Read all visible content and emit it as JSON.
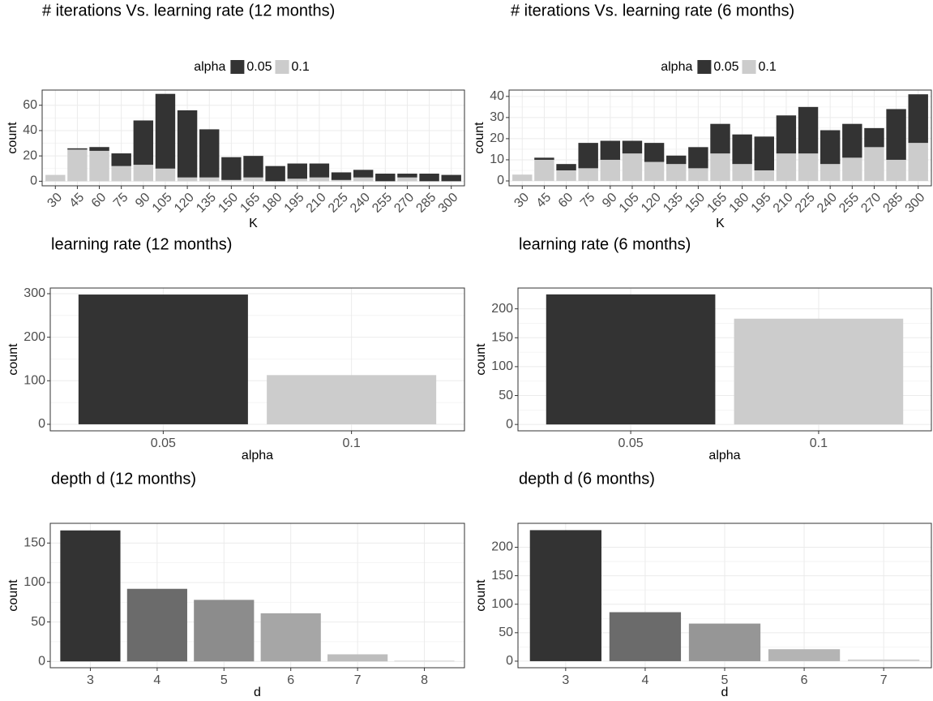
{
  "chart_data": [
    {
      "type": "stacked_bar",
      "title": "# iterations Vs. learning rate (12 months)",
      "xlabel": "K",
      "ylabel": "count",
      "legend_title": "alpha",
      "legend": "top",
      "grid": true,
      "categories": [
        "30",
        "45",
        "60",
        "75",
        "90",
        "105",
        "120",
        "135",
        "150",
        "165",
        "180",
        "195",
        "210",
        "225",
        "240",
        "255",
        "270",
        "285",
        "300"
      ],
      "series": [
        {
          "name": "0.05",
          "color": "#333333",
          "values": [
            0,
            1,
            3,
            10,
            35,
            59,
            53,
            38,
            18,
            17,
            12,
            12,
            11,
            6,
            6,
            6,
            3,
            6,
            5
          ]
        },
        {
          "name": "0.1",
          "color": "#cccccc",
          "values": [
            5,
            25,
            24,
            12,
            13,
            10,
            3,
            3,
            1,
            3,
            0,
            2,
            3,
            1,
            3,
            0,
            3,
            0,
            0
          ]
        }
      ],
      "ylim": [
        -3.6,
        72
      ],
      "yticks": [
        0,
        20,
        40,
        60
      ]
    },
    {
      "type": "stacked_bar",
      "title": "# iterations Vs. learning rate (6 months)",
      "xlabel": "K",
      "ylabel": "count",
      "legend_title": "alpha",
      "legend": "top",
      "grid": true,
      "categories": [
        "30",
        "45",
        "60",
        "75",
        "90",
        "105",
        "120",
        "135",
        "150",
        "165",
        "180",
        "195",
        "210",
        "225",
        "240",
        "255",
        "270",
        "285",
        "300"
      ],
      "series": [
        {
          "name": "0.05",
          "color": "#333333",
          "values": [
            0,
            1,
            3,
            12,
            9,
            6,
            9,
            4,
            10,
            14,
            14,
            16,
            18,
            22,
            16,
            16,
            9,
            24,
            23
          ]
        },
        {
          "name": "0.1",
          "color": "#cccccc",
          "values": [
            3,
            10,
            5,
            6,
            10,
            13,
            9,
            8,
            6,
            13,
            8,
            5,
            13,
            13,
            8,
            11,
            16,
            10,
            18
          ]
        }
      ],
      "ylim": [
        -2.3,
        43
      ],
      "yticks": [
        0,
        10,
        20,
        30,
        40
      ]
    },
    {
      "type": "bar",
      "title": "learning rate (12 months)",
      "xlabel": "alpha",
      "ylabel": "count",
      "grid": true,
      "categories": [
        "0.05",
        "0.1"
      ],
      "values": [
        298,
        113
      ],
      "colors": [
        "#333333",
        "#cccccc"
      ],
      "ylim": [
        -15,
        313
      ],
      "yticks": [
        0,
        100,
        200,
        300
      ]
    },
    {
      "type": "bar",
      "title": "learning rate (6 months)",
      "xlabel": "alpha",
      "ylabel": "count",
      "grid": true,
      "categories": [
        "0.05",
        "0.1"
      ],
      "values": [
        225,
        183
      ],
      "colors": [
        "#333333",
        "#cccccc"
      ],
      "ylim": [
        -11,
        236
      ],
      "yticks": [
        0,
        50,
        100,
        150,
        200
      ]
    },
    {
      "type": "bar",
      "title": "depth d (12 months)",
      "xlabel": "d",
      "ylabel": "count",
      "grid": true,
      "categories": [
        "3",
        "4",
        "5",
        "6",
        "7",
        "8"
      ],
      "values": [
        166,
        92,
        78,
        61,
        9,
        1
      ],
      "colors": [
        "#333333",
        "#6b6b6b",
        "#8c8c8c",
        "#a6a6a6",
        "#bdbdbd",
        "#d4d4d4"
      ],
      "ylim": [
        -8,
        175
      ],
      "yticks": [
        0,
        50,
        100,
        150
      ]
    },
    {
      "type": "bar",
      "title": "depth d (6 months)",
      "xlabel": "d",
      "ylabel": "count",
      "grid": true,
      "categories": [
        "3",
        "4",
        "5",
        "6",
        "7"
      ],
      "values": [
        230,
        86,
        66,
        21,
        3
      ],
      "colors": [
        "#333333",
        "#6b6b6b",
        "#969696",
        "#b4b4b4",
        "#d0d0d0"
      ],
      "ylim": [
        -11.5,
        242
      ],
      "yticks": [
        0,
        50,
        100,
        150,
        200
      ]
    }
  ]
}
